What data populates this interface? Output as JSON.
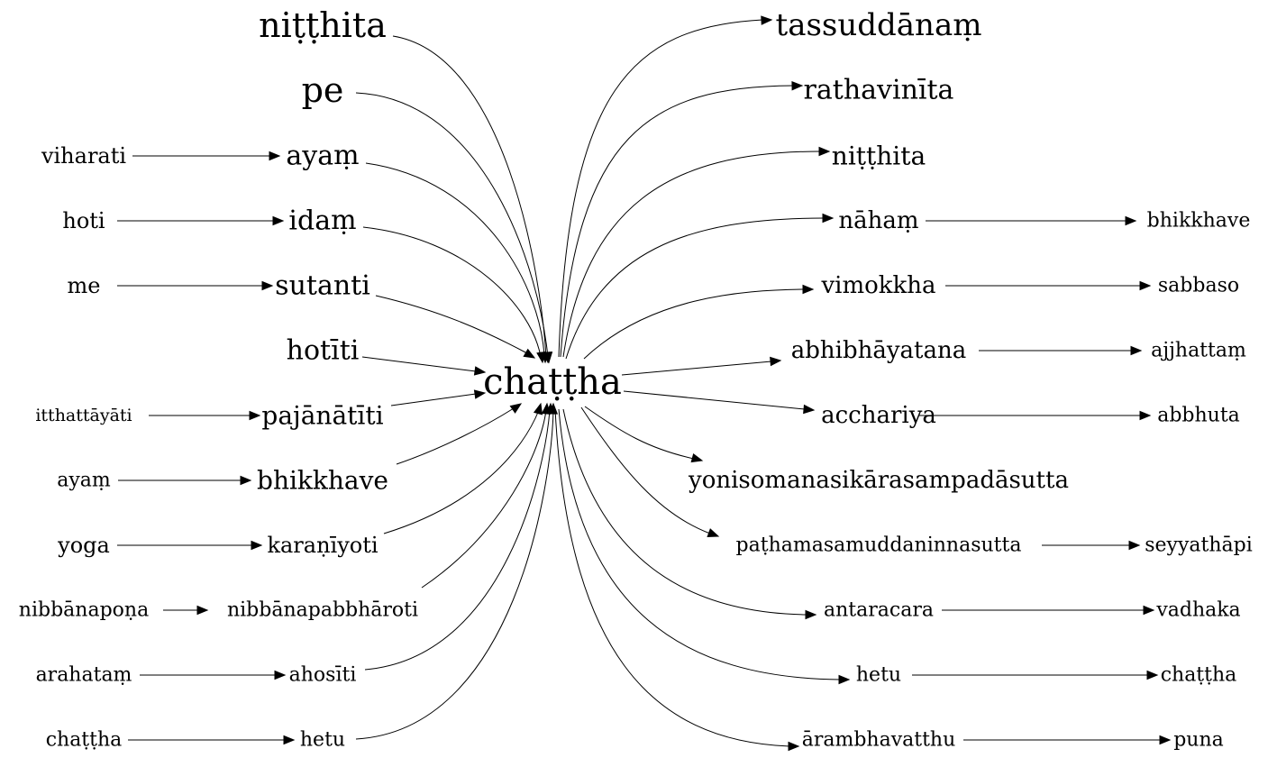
{
  "graph": {
    "center": "chaṭṭha",
    "nodes": [
      "niṭṭhita",
      "pe",
      "viharati",
      "ayaṃ",
      "hoti",
      "idaṃ",
      "me",
      "sutanti",
      "hotīti",
      "itthattāyāti",
      "pajānātīti",
      "ayaṃ",
      "bhikkhave",
      "yoga",
      "karaṇīyoti",
      "nibbānapoṇa",
      "nibbānapabbhāroti",
      "arahataṃ",
      "ahosīti",
      "chaṭṭha",
      "hetu",
      "chaṭṭha",
      "tassuddānaṃ",
      "rathavinīta",
      "niṭṭhita",
      "nāhaṃ",
      "bhikkhave",
      "vimokkha",
      "sabbaso",
      "abhibhāyatana",
      "ajjhattaṃ",
      "acchariya",
      "abbhuta",
      "yonisomanasikārasampadāsutta",
      "paṭhamasamuddaninnasutta",
      "seyyathāpi",
      "antaracara",
      "vadhaka",
      "hetu",
      "chaṭṭha",
      "ārambhavatthu",
      "puna"
    ],
    "edges": [
      [
        "niṭṭhita",
        "chaṭṭha"
      ],
      [
        "pe",
        "chaṭṭha"
      ],
      [
        "viharati",
        "ayaṃ"
      ],
      [
        "ayaṃ",
        "chaṭṭha"
      ],
      [
        "hoti",
        "idaṃ"
      ],
      [
        "idaṃ",
        "chaṭṭha"
      ],
      [
        "me",
        "sutanti"
      ],
      [
        "sutanti",
        "chaṭṭha"
      ],
      [
        "hotīti",
        "chaṭṭha"
      ],
      [
        "itthattāyāti",
        "pajānātīti"
      ],
      [
        "pajānātīti",
        "chaṭṭha"
      ],
      [
        "ayaṃ",
        "bhikkhave"
      ],
      [
        "bhikkhave",
        "chaṭṭha"
      ],
      [
        "yoga",
        "karaṇīyoti"
      ],
      [
        "karaṇīyoti",
        "chaṭṭha"
      ],
      [
        "nibbānapoṇa",
        "nibbānapabbhāroti"
      ],
      [
        "nibbānapabbhāroti",
        "chaṭṭha"
      ],
      [
        "arahataṃ",
        "ahosīti"
      ],
      [
        "ahosīti",
        "chaṭṭha"
      ],
      [
        "chaṭṭha",
        "hetu"
      ],
      [
        "hetu",
        "chaṭṭha"
      ],
      [
        "chaṭṭha",
        "tassuddānaṃ"
      ],
      [
        "chaṭṭha",
        "rathavinīta"
      ],
      [
        "chaṭṭha",
        "niṭṭhita"
      ],
      [
        "chaṭṭha",
        "nāhaṃ"
      ],
      [
        "nāhaṃ",
        "bhikkhave"
      ],
      [
        "chaṭṭha",
        "vimokkha"
      ],
      [
        "vimokkha",
        "sabbaso"
      ],
      [
        "chaṭṭha",
        "abhibhāyatana"
      ],
      [
        "abhibhāyatana",
        "ajjhattaṃ"
      ],
      [
        "chaṭṭha",
        "acchariya"
      ],
      [
        "acchariya",
        "abbhuta"
      ],
      [
        "chaṭṭha",
        "yonisomanasikārasampadāsutta"
      ],
      [
        "chaṭṭha",
        "paṭhamasamuddaninnasutta"
      ],
      [
        "paṭhamasamuddaninnasutta",
        "seyyathāpi"
      ],
      [
        "chaṭṭha",
        "antaracara"
      ],
      [
        "antaracara",
        "vadhaka"
      ],
      [
        "chaṭṭha",
        "hetu"
      ],
      [
        "hetu",
        "chaṭṭha"
      ],
      [
        "chaṭṭha",
        "ārambhavatthu"
      ],
      [
        "ārambhavatthu",
        "puna"
      ]
    ]
  }
}
